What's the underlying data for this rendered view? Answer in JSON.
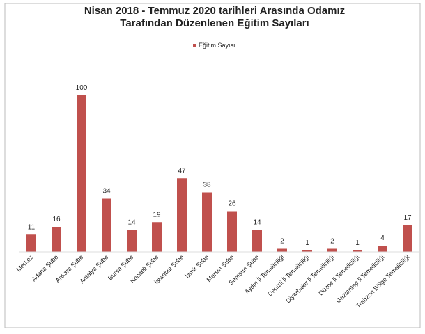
{
  "chart_data": {
    "type": "bar",
    "title": [
      "Nisan 2018 - Temmuz 2020 tarihleri Arasında Odamız",
      "Tarafından Düzenlenen Eğitim Sayıları"
    ],
    "categories": [
      "Merkez",
      "Adana Şube",
      "Ankara Şube",
      "Antalya Şube",
      "Bursa Şube",
      "Kocaeli Şube",
      "İstanbul Şube",
      "İzmir Şube",
      "Mersin Şube",
      "Samsun Şube",
      "Aydın İl Temsilciliği",
      "Denizli İl Temsilciliği",
      "Diyarbakır İl Temsilciliği",
      "Düzce İl Temsilciliği",
      "Gaziantep İl Temsilciliği",
      "Trabzon Bölge Temsilciliği"
    ],
    "series": [
      {
        "name": "Eğitim Sayısı",
        "color": "#c0504d",
        "values": [
          11,
          16,
          100,
          34,
          14,
          19,
          47,
          38,
          26,
          14,
          2,
          1,
          2,
          1,
          4,
          17
        ]
      }
    ],
    "legend": "top"
  }
}
